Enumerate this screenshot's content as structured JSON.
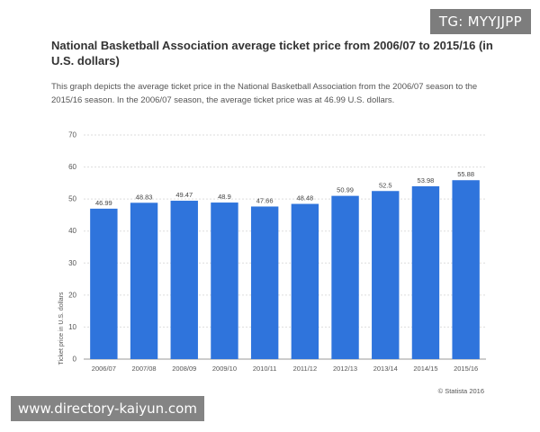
{
  "header": {
    "title": "National Basketball Association average ticket price from 2006/07 to 2015/16 (in U.S. dollars)",
    "description": "This graph depicts the average ticket price in the National Basketball Association from the 2006/07 season to the 2015/16 season. In the 2006/07 season, the average ticket price was at 46.99 U.S. dollars."
  },
  "watermarks": {
    "top": "TG: MYYJJPP",
    "bottom": "www.directory-kaiyun.com"
  },
  "credit": "© Statista 2016",
  "colors": {
    "bar": "#2f74dc",
    "grid": "#dddddd",
    "axis_text": "#555555"
  },
  "chart_data": {
    "type": "bar",
    "title": "National Basketball Association average ticket price from 2006/07 to 2015/16 (in U.S. dollars)",
    "xlabel": "",
    "ylabel": "Ticket price in U.S. dollars",
    "categories": [
      "2006/07",
      "2007/08",
      "2008/09",
      "2009/10",
      "2010/11",
      "2011/12",
      "2012/13",
      "2013/14",
      "2014/15",
      "2015/16"
    ],
    "values": [
      46.99,
      48.83,
      49.47,
      48.9,
      47.66,
      48.48,
      50.99,
      52.5,
      53.98,
      55.88
    ],
    "data_labels": [
      "46.99",
      "48.83",
      "49.47",
      "48.9",
      "47.66",
      "48.48",
      "50.99",
      "52.5",
      "53.98",
      "55.88"
    ],
    "ylim": [
      0,
      70
    ],
    "yticks": [
      0,
      10,
      20,
      30,
      40,
      50,
      60,
      70
    ],
    "grid": true,
    "legend": "none"
  }
}
